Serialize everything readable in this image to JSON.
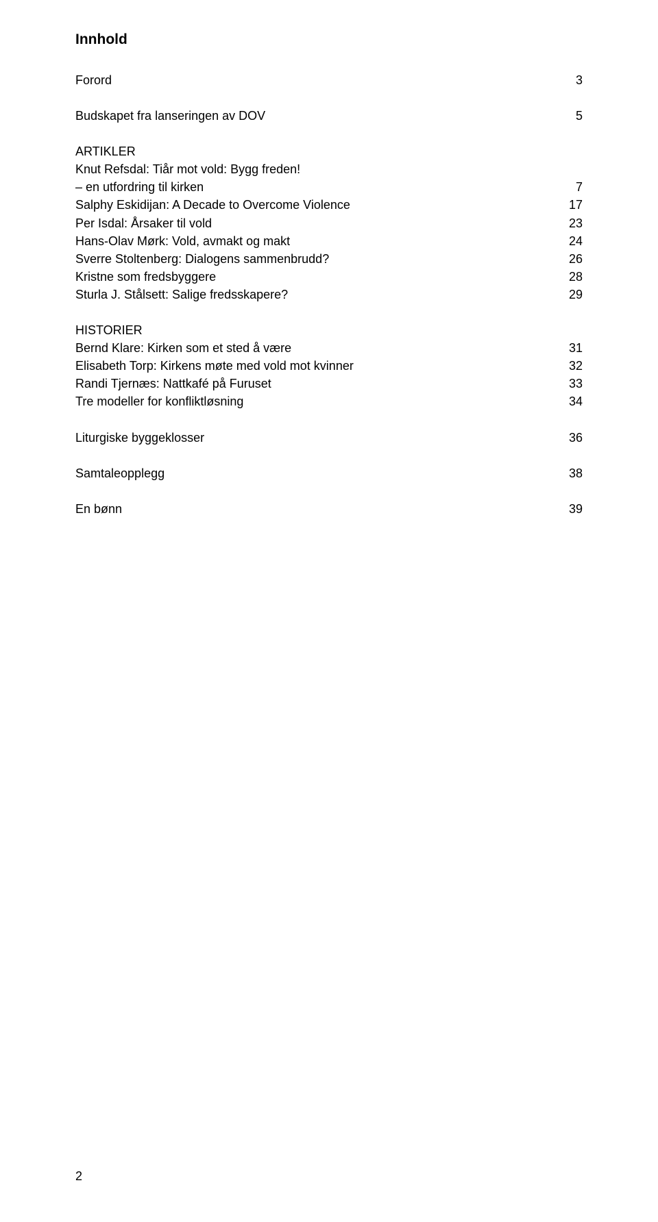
{
  "title": "Innhold",
  "entries": [
    {
      "label": "Forord",
      "page": "3",
      "spaceAfter": true
    },
    {
      "label": "Budskapet fra lanseringen av DOV",
      "page": "5",
      "spaceAfter": true
    },
    {
      "header": "ARTIKLER"
    },
    {
      "label": "Knut Refsdal: Tiår mot vold: Bygg freden!",
      "page": ""
    },
    {
      "label": "– en utfordring til kirken",
      "page": "7"
    },
    {
      "label": "Salphy Eskidijan: A Decade to Overcome Violence",
      "page": "17"
    },
    {
      "label": "Per Isdal: Årsaker til vold",
      "page": "23"
    },
    {
      "label": "Hans-Olav Mørk: Vold, avmakt og makt",
      "page": "24"
    },
    {
      "label": "Sverre Stoltenberg: Dialogens sammenbrudd?",
      "page": "26"
    },
    {
      "label": "Kristne som fredsbyggere",
      "page": "28"
    },
    {
      "label": "Sturla J. Stålsett: Salige fredsskapere?",
      "page": "29",
      "spaceAfter": true
    },
    {
      "header": "HISTORIER"
    },
    {
      "label": "Bernd Klare: Kirken som et sted å være",
      "page": "31"
    },
    {
      "label": "Elisabeth Torp: Kirkens møte med vold mot kvinner",
      "page": "32"
    },
    {
      "label": "Randi Tjernæs: Nattkafé på Furuset",
      "page": "33"
    },
    {
      "label": "Tre modeller for konfliktløsning",
      "page": "34",
      "spaceAfter": true
    },
    {
      "label": "Liturgiske byggeklosser",
      "page": "36",
      "spaceAfter": true
    },
    {
      "label": "Samtaleopplegg",
      "page": "38",
      "spaceAfter": true
    },
    {
      "label": "En bønn",
      "page": "39"
    }
  ],
  "pageNumber": "2"
}
